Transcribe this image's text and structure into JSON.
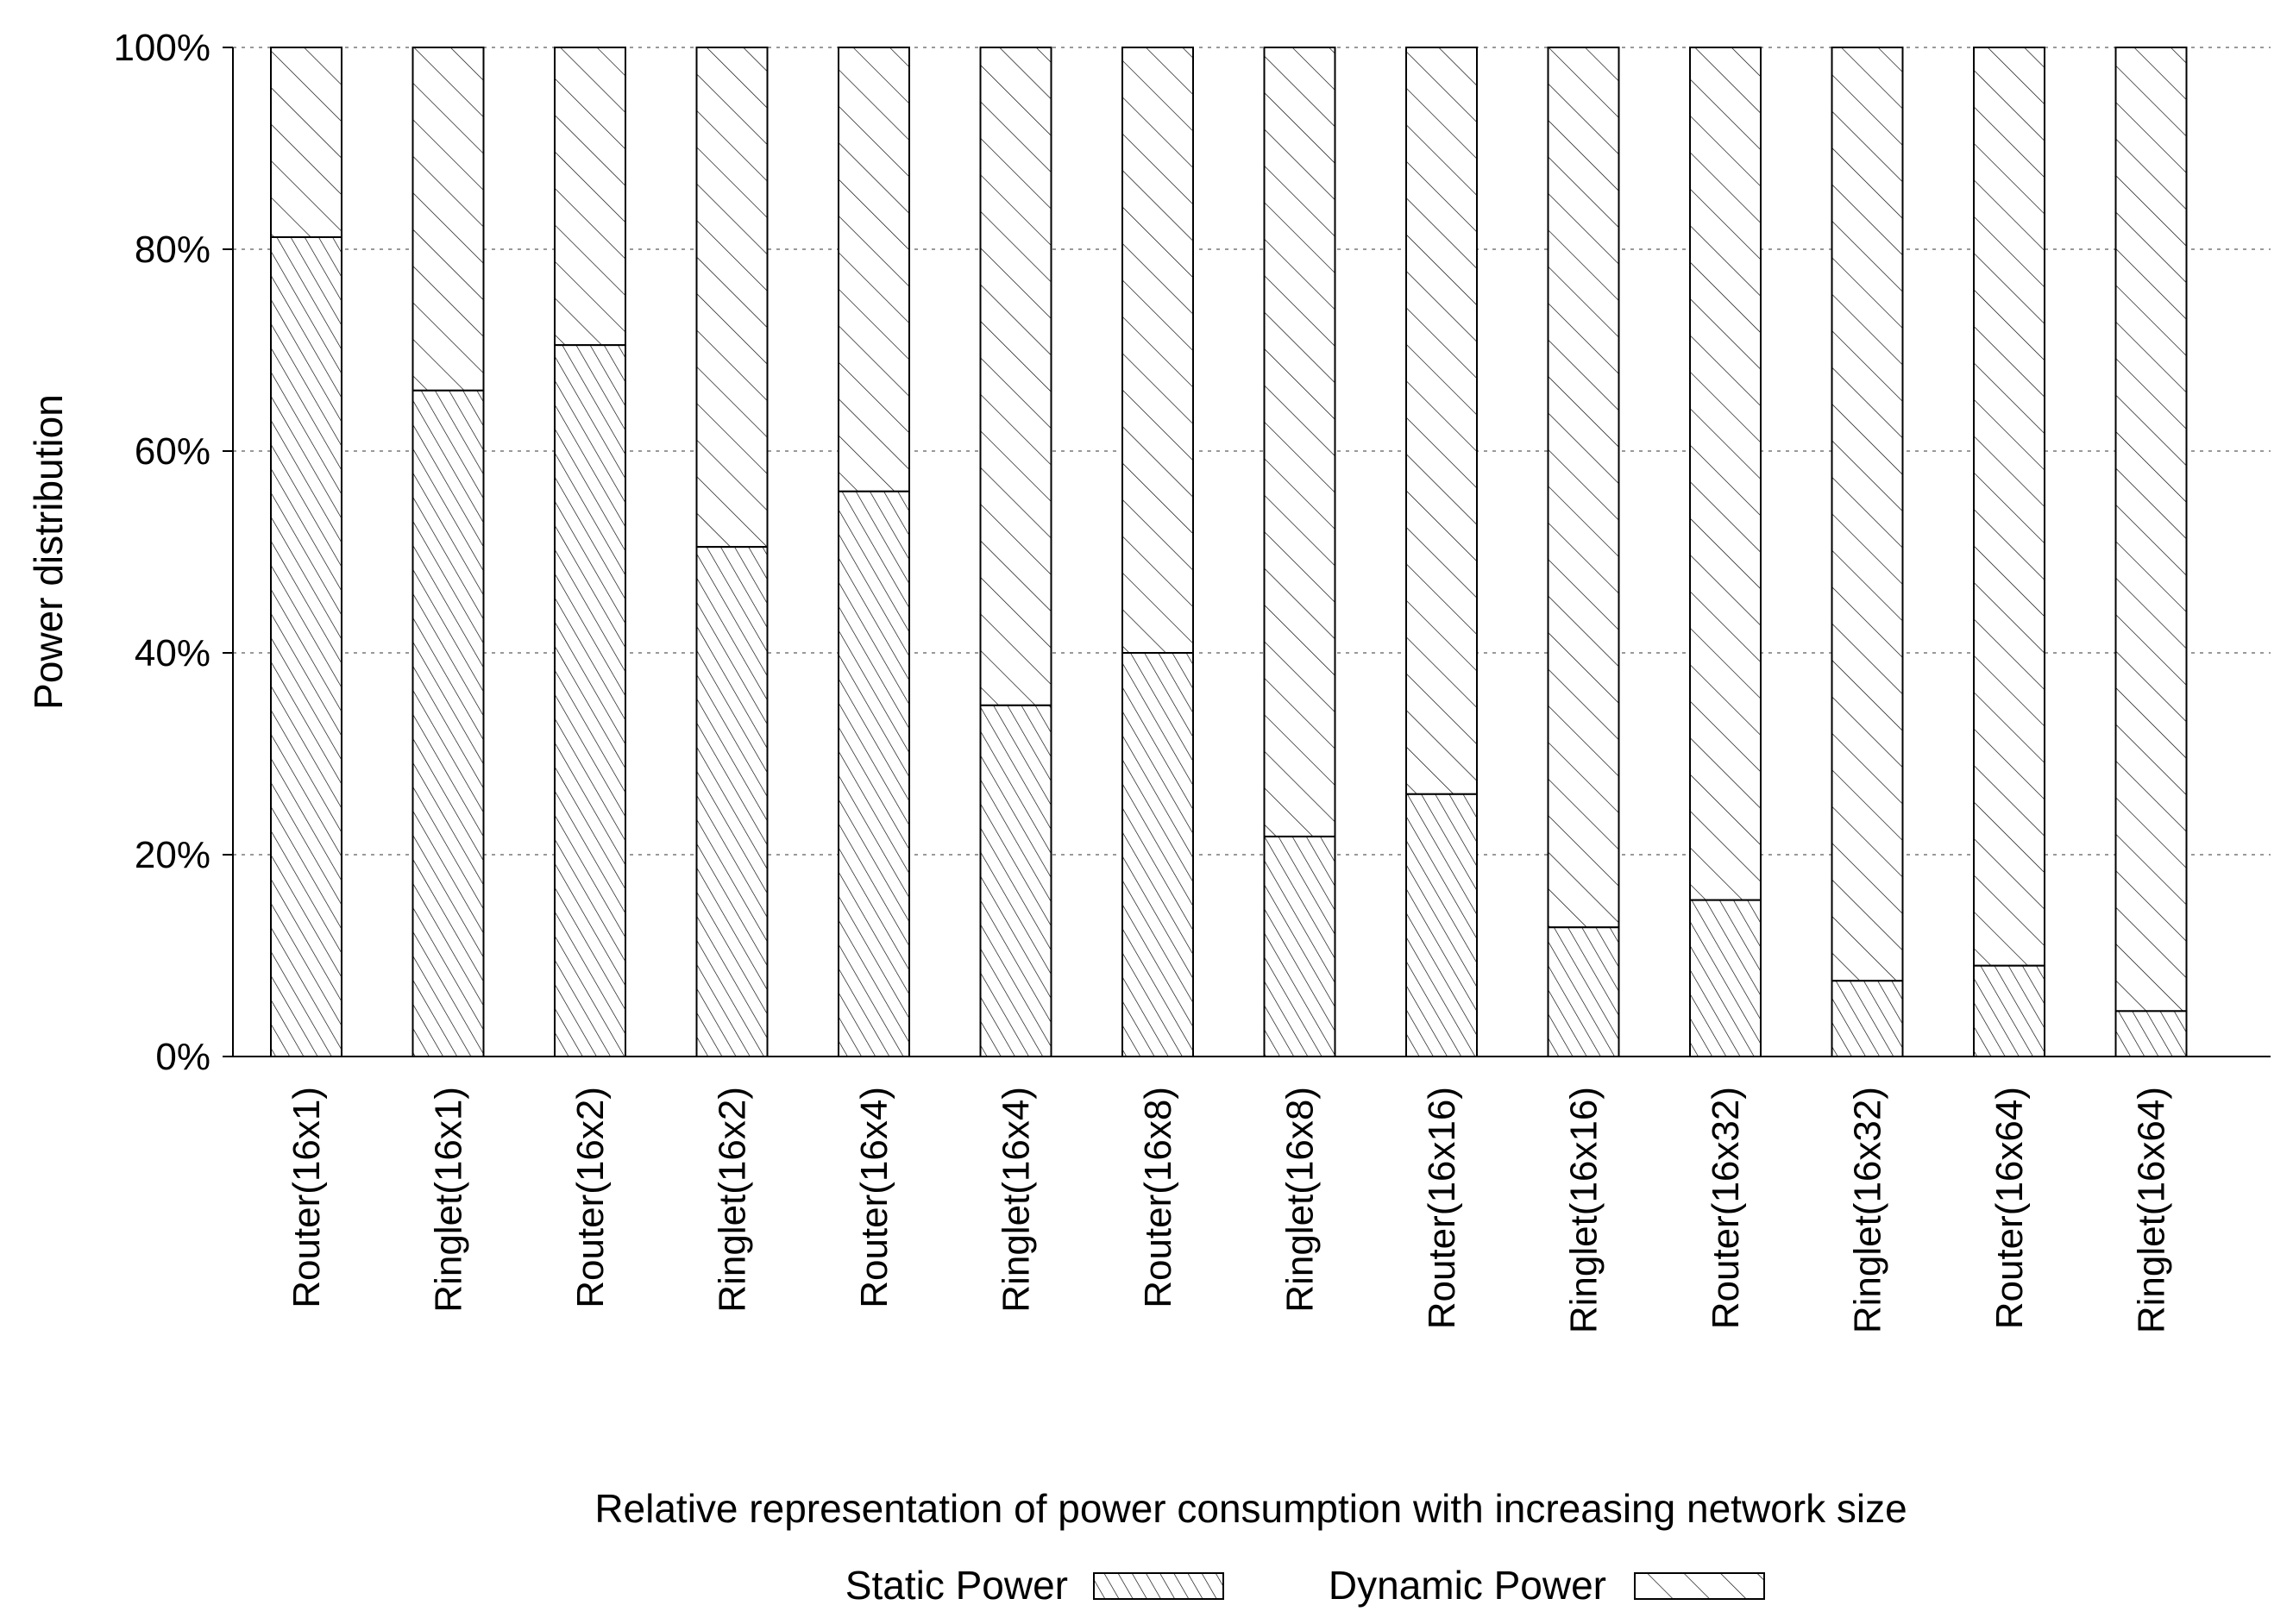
{
  "chart_data": {
    "type": "bar",
    "stacked": true,
    "percent": true,
    "categories": [
      "Router(16x1)",
      "Ringlet(16x1)",
      "Router(16x2)",
      "Ringlet(16x2)",
      "Router(16x4)",
      "Ringlet(16x4)",
      "Router(16x8)",
      "Ringlet(16x8)",
      "Router(16x16)",
      "Ringlet(16x16)",
      "Router(16x32)",
      "Ringlet(16x32)",
      "Router(16x64)",
      "Ringlet(16x64)"
    ],
    "series": [
      {
        "name": "Static Power",
        "values": [
          81.2,
          66.0,
          70.5,
          50.5,
          56.0,
          34.8,
          40.0,
          21.8,
          26.0,
          12.8,
          15.5,
          7.5,
          9.0,
          4.5
        ]
      },
      {
        "name": "Dynamic Power",
        "values": [
          18.8,
          34.0,
          29.5,
          49.5,
          44.0,
          65.2,
          60.0,
          78.2,
          74.0,
          87.2,
          84.5,
          92.5,
          91.0,
          95.5
        ]
      }
    ],
    "xlabel": "Relative representation of power consumption with increasing network size",
    "ylabel": "Power distribution",
    "ylim": [
      0,
      100
    ],
    "yticks": [
      "0%",
      "20%",
      "40%",
      "60%",
      "80%",
      "100%"
    ],
    "grid": "horizontal-dotted",
    "legend_position": "bottom",
    "colors": {
      "fill": "#ffffff",
      "stroke": "#000000",
      "grid": "#999999"
    },
    "patterns": {
      "Static Power": "dense-diagonal-hatch",
      "Dynamic Power": "sparse-diagonal-hatch"
    }
  }
}
